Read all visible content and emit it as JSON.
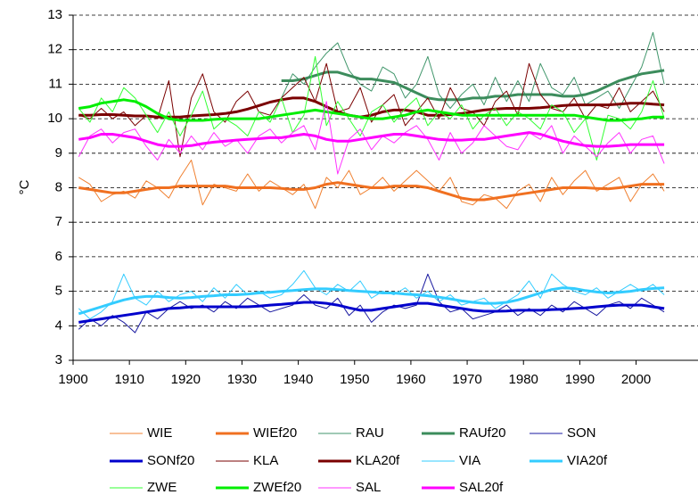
{
  "chart_data": {
    "type": "line",
    "y_label": "°C",
    "x": [
      1901,
      1903,
      1905,
      1907,
      1909,
      1911,
      1913,
      1915,
      1917,
      1919,
      1921,
      1923,
      1925,
      1927,
      1929,
      1931,
      1933,
      1935,
      1937,
      1939,
      1941,
      1943,
      1945,
      1947,
      1949,
      1951,
      1953,
      1955,
      1957,
      1959,
      1961,
      1963,
      1965,
      1967,
      1969,
      1971,
      1973,
      1975,
      1977,
      1979,
      1981,
      1983,
      1985,
      1987,
      1989,
      1991,
      1993,
      1995,
      1997,
      1999,
      2001,
      2003,
      2005
    ],
    "xlim": [
      1900,
      2011
    ],
    "xticks": [
      1900,
      1910,
      1920,
      1930,
      1940,
      1950,
      1960,
      1970,
      1980,
      1990,
      2000
    ],
    "ylim": [
      3,
      13
    ],
    "yticks": [
      3,
      4,
      5,
      6,
      7,
      8,
      9,
      10,
      11,
      12,
      13
    ],
    "grid": true,
    "series": [
      {
        "name": "WIE",
        "color": "#f08030",
        "line_width": 1,
        "values": [
          8.3,
          8.1,
          7.6,
          7.8,
          7.9,
          7.7,
          8.2,
          8.0,
          7.7,
          8.3,
          8.8,
          7.5,
          8.1,
          8.0,
          7.9,
          8.4,
          7.9,
          8.2,
          8.0,
          7.8,
          8.1,
          7.4,
          8.3,
          8.0,
          8.5,
          7.8,
          8.0,
          8.3,
          7.9,
          8.2,
          8.5,
          8.2,
          7.9,
          8.3,
          7.6,
          7.5,
          7.8,
          7.7,
          7.4,
          7.9,
          8.1,
          7.6,
          8.3,
          7.8,
          8.2,
          8.5,
          7.9,
          8.1,
          8.3,
          7.6,
          8.1,
          8.4,
          7.9
        ]
      },
      {
        "name": "WIEf20",
        "color": "#f07020",
        "line_width": 3,
        "values": [
          8.0,
          7.95,
          7.9,
          7.85,
          7.85,
          7.9,
          7.95,
          8.0,
          8.0,
          8.05,
          8.05,
          8.05,
          8.05,
          8.05,
          8.0,
          8.0,
          8.0,
          8.0,
          7.98,
          7.95,
          7.95,
          8.0,
          8.1,
          8.15,
          8.1,
          8.05,
          8.0,
          8.0,
          8.05,
          8.05,
          8.05,
          8.0,
          7.9,
          7.8,
          7.7,
          7.65,
          7.65,
          7.7,
          7.75,
          7.8,
          7.85,
          7.9,
          7.95,
          8.0,
          8.0,
          8.0,
          7.98,
          7.97,
          8.0,
          8.05,
          8.1,
          8.1,
          8.1
        ]
      },
      {
        "name": "RAU",
        "color": "#40966b",
        "line_width": 1,
        "values": [
          null,
          null,
          null,
          null,
          null,
          null,
          null,
          null,
          null,
          null,
          null,
          null,
          null,
          null,
          null,
          null,
          null,
          null,
          10.6,
          11.3,
          11.0,
          11.5,
          11.9,
          12.2,
          11.4,
          11.0,
          10.8,
          11.5,
          11.3,
          10.6,
          11.0,
          11.8,
          10.7,
          10.3,
          10.7,
          11.0,
          10.4,
          11.2,
          10.5,
          11.1,
          10.5,
          11.6,
          10.9,
          10.7,
          11.2,
          10.4,
          10.6,
          10.8,
          10.3,
          10.9,
          11.5,
          12.5,
          11.0
        ]
      },
      {
        "name": "RAUf20",
        "color": "#3c8c5c",
        "line_width": 3,
        "values": [
          null,
          null,
          null,
          null,
          null,
          null,
          null,
          null,
          null,
          null,
          null,
          null,
          null,
          null,
          null,
          null,
          null,
          null,
          11.1,
          11.1,
          11.15,
          11.25,
          11.35,
          11.35,
          11.25,
          11.15,
          11.15,
          11.1,
          11.05,
          10.9,
          10.75,
          10.6,
          10.55,
          10.55,
          10.55,
          10.6,
          10.6,
          10.65,
          10.65,
          10.7,
          10.7,
          10.7,
          10.7,
          10.65,
          10.65,
          10.7,
          10.8,
          10.95,
          11.1,
          11.2,
          11.3,
          11.35,
          11.4
        ]
      },
      {
        "name": "SON",
        "color": "#1a1aa0",
        "line_width": 1,
        "values": [
          3.9,
          4.2,
          4.0,
          4.3,
          4.1,
          3.8,
          4.4,
          4.2,
          4.5,
          4.7,
          4.5,
          4.6,
          4.4,
          4.7,
          4.5,
          4.8,
          4.6,
          4.4,
          4.5,
          4.6,
          4.9,
          4.6,
          4.5,
          4.8,
          4.3,
          4.6,
          4.1,
          4.4,
          4.6,
          4.5,
          4.6,
          5.5,
          4.7,
          4.4,
          4.5,
          4.2,
          4.3,
          4.4,
          4.6,
          4.3,
          4.5,
          4.3,
          4.6,
          4.4,
          4.7,
          4.5,
          4.3,
          4.6,
          4.7,
          4.5,
          4.8,
          4.6,
          4.4
        ]
      },
      {
        "name": "SONf20",
        "color": "#0000cc",
        "line_width": 3,
        "values": [
          4.1,
          4.15,
          4.2,
          4.25,
          4.3,
          4.35,
          4.4,
          4.45,
          4.5,
          4.52,
          4.55,
          4.55,
          4.55,
          4.55,
          4.55,
          4.55,
          4.57,
          4.6,
          4.62,
          4.65,
          4.68,
          4.68,
          4.65,
          4.6,
          4.52,
          4.45,
          4.45,
          4.5,
          4.55,
          4.6,
          4.65,
          4.65,
          4.6,
          4.55,
          4.5,
          4.45,
          4.42,
          4.42,
          4.43,
          4.45,
          4.45,
          4.45,
          4.47,
          4.48,
          4.5,
          4.52,
          4.55,
          4.58,
          4.6,
          4.6,
          4.6,
          4.55,
          4.5
        ]
      },
      {
        "name": "KLA",
        "color": "#7a0000",
        "line_width": 1,
        "values": [
          10.1,
          10.0,
          10.3,
          10.0,
          10.2,
          9.8,
          10.1,
          10.0,
          11.1,
          8.9,
          10.6,
          11.3,
          10.2,
          9.9,
          10.5,
          10.8,
          10.2,
          10.1,
          10.6,
          10.9,
          11.2,
          10.5,
          11.6,
          10.2,
          10.3,
          10.9,
          9.9,
          10.4,
          10.7,
          9.8,
          10.2,
          10.6,
          10.0,
          10.9,
          10.3,
          10.2,
          9.8,
          10.5,
          10.8,
          10.1,
          11.6,
          10.7,
          10.3,
          10.2,
          10.6,
          10.0,
          10.4,
          10.3,
          10.9,
          10.2,
          10.5,
          10.8,
          10.2
        ]
      },
      {
        "name": "KLA20f",
        "color": "#7a0000",
        "line_width": 3,
        "values": [
          10.1,
          10.1,
          10.12,
          10.12,
          10.1,
          10.08,
          10.08,
          10.05,
          10.05,
          10.05,
          10.08,
          10.1,
          10.12,
          10.15,
          10.2,
          10.28,
          10.38,
          10.48,
          10.55,
          10.6,
          10.6,
          10.5,
          10.35,
          10.2,
          10.1,
          10.05,
          10.1,
          10.2,
          10.25,
          10.25,
          10.2,
          10.1,
          10.1,
          10.12,
          10.15,
          10.2,
          10.25,
          10.28,
          10.3,
          10.3,
          10.3,
          10.32,
          10.35,
          10.38,
          10.4,
          10.4,
          10.4,
          10.4,
          10.42,
          10.45,
          10.45,
          10.42,
          10.4
        ]
      },
      {
        "name": "VIA",
        "color": "#33ccff",
        "line_width": 1,
        "values": [
          4.5,
          4.2,
          4.4,
          4.7,
          5.5,
          4.8,
          4.6,
          5.0,
          4.7,
          4.9,
          5.0,
          4.7,
          5.1,
          4.8,
          5.2,
          4.9,
          5.0,
          4.8,
          4.9,
          5.2,
          5.6,
          5.1,
          4.9,
          5.2,
          5.0,
          5.3,
          4.8,
          5.0,
          4.9,
          5.1,
          4.8,
          5.0,
          4.7,
          4.9,
          4.6,
          4.7,
          4.8,
          4.5,
          4.7,
          4.9,
          5.3,
          4.8,
          5.5,
          5.2,
          5.0,
          4.9,
          5.1,
          4.8,
          5.0,
          5.2,
          5.0,
          5.2,
          4.9
        ]
      },
      {
        "name": "VIA20f",
        "color": "#33ccff",
        "line_width": 3,
        "values": [
          4.35,
          4.45,
          4.55,
          4.65,
          4.75,
          4.82,
          4.85,
          4.85,
          4.82,
          4.8,
          4.82,
          4.85,
          4.87,
          4.9,
          4.9,
          4.92,
          4.95,
          4.97,
          5.0,
          5.02,
          5.05,
          5.07,
          5.07,
          5.05,
          5.02,
          5.0,
          4.98,
          4.95,
          4.95,
          4.92,
          4.9,
          4.87,
          4.83,
          4.78,
          4.72,
          4.68,
          4.65,
          4.65,
          4.68,
          4.75,
          4.85,
          4.95,
          5.05,
          5.1,
          5.08,
          5.02,
          4.98,
          4.95,
          4.97,
          5.0,
          5.05,
          5.08,
          5.1
        ]
      },
      {
        "name": "ZWE",
        "color": "#33ff33",
        "line_width": 1,
        "values": [
          10.3,
          9.9,
          10.6,
          10.2,
          10.9,
          10.6,
          10.1,
          9.6,
          10.2,
          9.5,
          10.1,
          10.8,
          9.7,
          10.0,
          9.8,
          9.5,
          10.2,
          9.9,
          10.6,
          9.6,
          10.1,
          11.8,
          9.8,
          10.5,
          10.0,
          9.5,
          10.2,
          10.4,
          9.9,
          10.3,
          10.6,
          9.8,
          10.2,
          10.0,
          10.4,
          9.7,
          10.1,
          10.3,
          9.8,
          10.2,
          10.0,
          9.7,
          10.4,
          10.2,
          9.6,
          10.0,
          8.8,
          10.1,
          10.0,
          9.7,
          10.2,
          11.1,
          10.0
        ]
      },
      {
        "name": "ZWEf20",
        "color": "#00ee00",
        "line_width": 3,
        "values": [
          10.3,
          10.35,
          10.45,
          10.5,
          10.55,
          10.5,
          10.35,
          10.15,
          10.0,
          9.95,
          9.95,
          9.95,
          9.98,
          10.0,
          10.0,
          10.0,
          10.0,
          10.05,
          10.1,
          10.15,
          10.2,
          10.25,
          10.2,
          10.15,
          10.1,
          10.05,
          10.0,
          10.0,
          10.05,
          10.1,
          10.2,
          10.25,
          10.2,
          10.15,
          10.1,
          10.1,
          10.1,
          10.1,
          10.1,
          10.1,
          10.1,
          10.1,
          10.1,
          10.1,
          10.1,
          10.05,
          10.0,
          9.95,
          9.95,
          9.98,
          10.0,
          10.05,
          10.05
        ]
      },
      {
        "name": "SAL",
        "color": "#ff33ff",
        "line_width": 1,
        "values": [
          8.9,
          9.5,
          9.7,
          9.3,
          9.6,
          9.7,
          9.2,
          8.8,
          9.4,
          9.0,
          9.5,
          9.1,
          9.6,
          9.2,
          9.4,
          9.0,
          9.5,
          9.7,
          9.3,
          9.6,
          9.8,
          9.1,
          10.5,
          8.4,
          9.4,
          9.7,
          9.1,
          9.5,
          9.3,
          9.6,
          9.8,
          9.4,
          8.8,
          9.6,
          9.0,
          9.3,
          9.8,
          9.5,
          9.2,
          9.1,
          9.6,
          9.4,
          9.8,
          9.0,
          9.5,
          9.2,
          8.9,
          9.3,
          9.6,
          9.0,
          9.4,
          9.5,
          8.7
        ]
      },
      {
        "name": "SAL20f",
        "color": "#ff00ff",
        "line_width": 3,
        "values": [
          9.4,
          9.45,
          9.55,
          9.55,
          9.5,
          9.45,
          9.35,
          9.25,
          9.2,
          9.2,
          9.22,
          9.28,
          9.32,
          9.35,
          9.38,
          9.4,
          9.42,
          9.45,
          9.45,
          9.5,
          9.55,
          9.5,
          9.4,
          9.35,
          9.35,
          9.4,
          9.45,
          9.5,
          9.55,
          9.55,
          9.5,
          9.45,
          9.4,
          9.38,
          9.38,
          9.4,
          9.4,
          9.45,
          9.5,
          9.55,
          9.6,
          9.55,
          9.45,
          9.35,
          9.28,
          9.22,
          9.2,
          9.2,
          9.22,
          9.25,
          9.25,
          9.25,
          9.25
        ]
      }
    ]
  }
}
